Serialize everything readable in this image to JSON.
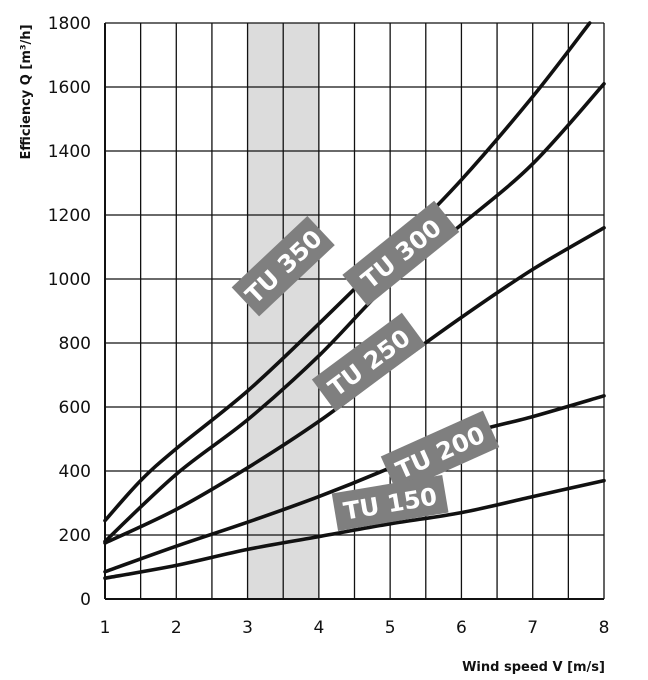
{
  "chart_data": {
    "type": "line",
    "xlabel": "Wind speed V [m/s]",
    "ylabel": "Efficiency Q [m³/h]",
    "xlim": [
      1,
      8
    ],
    "ylim": [
      0,
      1800
    ],
    "x_ticks": [
      1,
      2,
      3,
      4,
      5,
      6,
      7,
      8
    ],
    "y_ticks": [
      0,
      200,
      400,
      600,
      800,
      1000,
      1200,
      1400,
      1600,
      1800
    ],
    "grid": true,
    "highlight_band": {
      "x_from": 3,
      "x_to": 4
    },
    "series": [
      {
        "name": "TU 350",
        "x": [
          1,
          1.5,
          2,
          3,
          4,
          5,
          6,
          7,
          7.8
        ],
        "y": [
          245,
          370,
          470,
          650,
          860,
          1080,
          1310,
          1570,
          1800
        ]
      },
      {
        "name": "TU 300",
        "x": [
          1,
          2,
          3,
          4,
          5,
          6,
          7,
          8
        ],
        "y": [
          180,
          390,
          560,
          760,
          990,
          1170,
          1360,
          1610
        ]
      },
      {
        "name": "TU 250",
        "x": [
          1,
          2,
          3,
          4,
          5,
          6,
          7,
          8
        ],
        "y": [
          175,
          280,
          410,
          555,
          720,
          880,
          1030,
          1160
        ]
      },
      {
        "name": "TU 200",
        "x": [
          1,
          2,
          3,
          4,
          5,
          6,
          7,
          8
        ],
        "y": [
          85,
          165,
          240,
          320,
          410,
          510,
          570,
          635
        ]
      },
      {
        "name": "TU 150",
        "x": [
          1,
          2,
          3,
          4,
          5,
          6,
          7,
          8
        ],
        "y": [
          65,
          105,
          155,
          195,
          235,
          270,
          320,
          370
        ]
      }
    ]
  }
}
